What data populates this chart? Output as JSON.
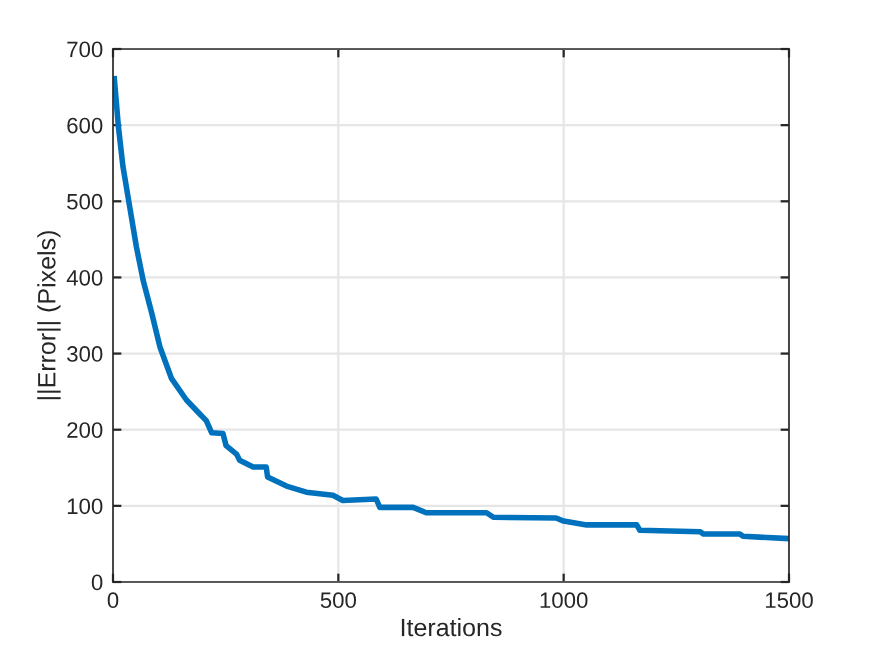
{
  "chart_data": {
    "type": "line",
    "xlabel": "Iterations",
    "ylabel": "||Error|| (Pixels)",
    "xlim": [
      0,
      1500
    ],
    "xticks": [
      0,
      500,
      1000,
      1500
    ],
    "ylim": [
      0,
      700
    ],
    "yticks": [
      0,
      100,
      200,
      300,
      400,
      500,
      600,
      700
    ],
    "grid": true,
    "line_style": "solid",
    "series": [
      {
        "color": "#0072bd",
        "x": [
          3,
          12,
          22,
          37,
          52,
          67,
          86,
          104,
          130,
          163,
          192,
          207,
          219,
          244,
          251,
          274,
          281,
          311,
          340,
          343,
          385,
          429,
          488,
          510,
          584,
          592,
          666,
          695,
          760,
          829,
          844,
          983,
          1000,
          1051,
          1162,
          1169,
          1303,
          1310,
          1391,
          1398,
          1500
        ],
        "values": [
          661,
          598,
          546,
          493,
          440,
          396,
          353,
          309,
          267,
          239,
          221,
          212,
          196,
          195,
          179,
          168,
          160,
          151,
          151,
          138,
          126,
          118,
          114,
          107,
          109,
          98,
          98,
          91,
          91,
          91,
          85,
          84,
          80,
          75,
          75,
          68,
          66,
          63,
          63,
          60,
          57
        ]
      }
    ]
  }
}
